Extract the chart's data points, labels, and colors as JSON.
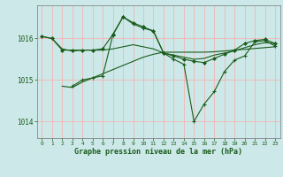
{
  "background_color": "#cce8e8",
  "grid_color_v": "#ffaaaa",
  "grid_color_h": "#ffaaaa",
  "line_color": "#1a5c1a",
  "title": "Graphe pression niveau de la mer (hPa)",
  "xlim": [
    -0.5,
    23.5
  ],
  "ylim": [
    1013.6,
    1016.8
  ],
  "yticks": [
    1014,
    1015,
    1016
  ],
  "xticks": [
    0,
    1,
    2,
    3,
    4,
    5,
    6,
    7,
    8,
    9,
    10,
    11,
    12,
    13,
    14,
    15,
    16,
    17,
    18,
    19,
    20,
    21,
    22,
    23
  ],
  "series": [
    {
      "x": [
        0,
        1,
        2,
        3,
        4,
        5,
        6,
        7,
        8,
        9,
        10,
        11,
        12,
        13,
        14,
        15,
        16,
        17,
        18,
        19,
        20,
        21,
        22,
        23
      ],
      "y": [
        1016.05,
        1016.0,
        1015.75,
        1015.7,
        1015.72,
        1015.72,
        1015.72,
        1015.75,
        1015.8,
        1015.85,
        1015.8,
        1015.75,
        1015.65,
        1015.6,
        1015.55,
        1015.5,
        1015.52,
        1015.6,
        1015.65,
        1015.7,
        1015.78,
        1015.85,
        1015.9,
        1015.88
      ],
      "marker": null,
      "linewidth": 0.8
    },
    {
      "x": [
        0,
        1,
        2,
        3,
        4,
        5,
        6,
        7,
        8,
        9,
        10,
        11,
        12,
        13,
        14,
        15,
        16,
        17,
        18,
        19,
        20,
        21,
        22,
        23
      ],
      "y": [
        1016.05,
        1016.0,
        1015.72,
        1015.72,
        1015.72,
        1015.72,
        1015.75,
        1016.1,
        1016.52,
        1016.38,
        1016.28,
        1016.18,
        1015.65,
        1015.58,
        1015.5,
        1015.45,
        1015.42,
        1015.52,
        1015.62,
        1015.72,
        1015.88,
        1015.95,
        1015.98,
        1015.88
      ],
      "marker": "D",
      "linewidth": 0.8
    },
    {
      "x": [
        2,
        3,
        4,
        5,
        6,
        7,
        8,
        9,
        10,
        11,
        12,
        13,
        14,
        15,
        16,
        17,
        18,
        19,
        20,
        21,
        22,
        23
      ],
      "y": [
        1014.85,
        1014.82,
        1014.95,
        1015.05,
        1015.15,
        1015.25,
        1015.35,
        1015.45,
        1015.55,
        1015.62,
        1015.67,
        1015.67,
        1015.67,
        1015.67,
        1015.67,
        1015.68,
        1015.7,
        1015.72,
        1015.74,
        1015.76,
        1015.78,
        1015.8
      ],
      "marker": null,
      "linewidth": 0.8
    },
    {
      "x": [
        3,
        4,
        5,
        6,
        7,
        8,
        9,
        10,
        11,
        12,
        13,
        14,
        15,
        16,
        17,
        18,
        19,
        20,
        21,
        22,
        23
      ],
      "y": [
        1014.85,
        1015.0,
        1015.05,
        1015.1,
        1016.08,
        1016.52,
        1016.35,
        1016.25,
        1016.18,
        1015.65,
        1015.5,
        1015.38,
        1014.0,
        1014.42,
        1014.72,
        1015.2,
        1015.48,
        1015.58,
        1015.92,
        1015.95,
        1015.82
      ],
      "marker": "+",
      "linewidth": 0.8
    }
  ]
}
